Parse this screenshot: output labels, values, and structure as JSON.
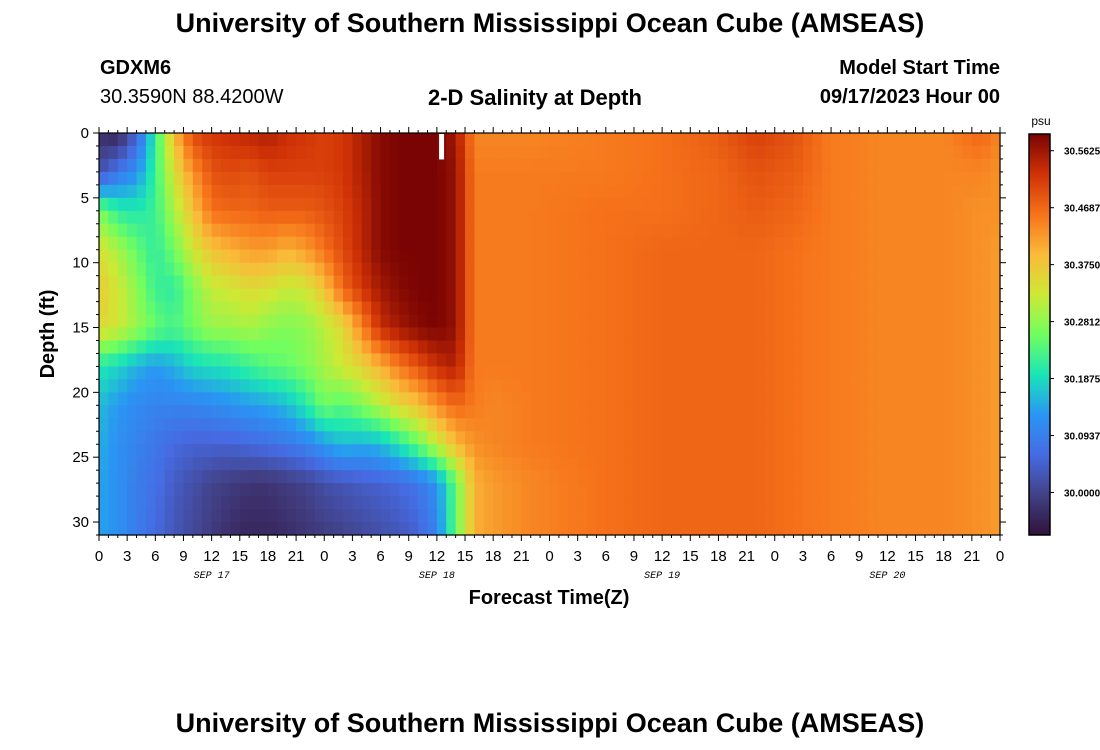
{
  "header": {
    "title_top": "University of Southern Mississippi Ocean Cube (AMSEAS)",
    "station_id": "GDXM6",
    "coordinates": "30.3590N  88.4200W",
    "plot_title": "2-D Salinity at Depth",
    "model_start_label": "Model Start Time",
    "model_start_value": "09/17/2023 Hour 00",
    "title_bottom": "University of Southern Mississippi Ocean Cube (AMSEAS)"
  },
  "chart_data": {
    "type": "heatmap",
    "title": "2-D Salinity at Depth",
    "xlabel": "Forecast Time(Z)",
    "ylabel": "Depth (ft)",
    "x_range_hours": [
      0,
      96
    ],
    "x_ticks": [
      "0",
      "3",
      "6",
      "9",
      "12",
      "15",
      "18",
      "21",
      "0",
      "3",
      "6",
      "9",
      "12",
      "15",
      "18",
      "21",
      "0",
      "3",
      "6",
      "9",
      "12",
      "15",
      "18",
      "21",
      "0",
      "3",
      "6",
      "9",
      "12",
      "15",
      "18",
      "21",
      "0"
    ],
    "date_labels": [
      {
        "text": "SEP 17",
        "hour": 12
      },
      {
        "text": "SEP 18",
        "hour": 36
      },
      {
        "text": "SEP 19",
        "hour": 60
      },
      {
        "text": "SEP 20",
        "hour": 84
      }
    ],
    "y_range": [
      0,
      31
    ],
    "y_ticks": [
      0,
      5,
      10,
      15,
      20,
      25,
      30
    ],
    "colorbar": {
      "units": "psu",
      "range": [
        29.93,
        30.59
      ],
      "tick_values": [
        30.5625,
        30.4687,
        30.375,
        30.2812,
        30.1875,
        30.0937,
        30.0
      ],
      "tick_labels": [
        "30.5625",
        "30.4687",
        "30.3750",
        "30.2812",
        "30.1875",
        "30.0937",
        "30.0000"
      ]
    },
    "marker": {
      "hour": 36.5,
      "depth_from": 0,
      "depth_to": 1.5
    },
    "salinity_grid": {
      "times": [
        0,
        2,
        4,
        6,
        8,
        10,
        12,
        14,
        16,
        18,
        20,
        22,
        24,
        26,
        28,
        30,
        32,
        34,
        36,
        38,
        40,
        42,
        46,
        54,
        60,
        66,
        70,
        74,
        78,
        84,
        90,
        94,
        96
      ],
      "depths": [
        0,
        3,
        6,
        9,
        12,
        15,
        18,
        21,
        24,
        27,
        31
      ],
      "values": [
        [
          29.97,
          29.95,
          30.05,
          30.21,
          30.39,
          30.5,
          30.52,
          30.53,
          30.54,
          30.55,
          30.53,
          30.52,
          30.51,
          30.52,
          30.55,
          30.58,
          30.59,
          30.59,
          30.59,
          30.56,
          30.44,
          30.44,
          30.44,
          30.45,
          30.46,
          30.48,
          30.51,
          30.49,
          30.45,
          30.44,
          30.44,
          30.47,
          30.44
        ],
        [
          30.02,
          30.08,
          30.12,
          30.22,
          30.34,
          30.43,
          30.49,
          30.5,
          30.49,
          30.51,
          30.51,
          30.51,
          30.51,
          30.52,
          30.55,
          30.58,
          30.59,
          30.59,
          30.59,
          30.57,
          30.45,
          30.45,
          30.45,
          30.45,
          30.46,
          30.47,
          30.49,
          30.48,
          30.45,
          30.44,
          30.44,
          30.44,
          30.43
        ],
        [
          30.27,
          30.21,
          30.2,
          30.22,
          30.3,
          30.38,
          30.46,
          30.47,
          30.47,
          30.48,
          30.48,
          30.48,
          30.49,
          30.51,
          30.54,
          30.58,
          30.59,
          30.59,
          30.59,
          30.57,
          30.45,
          30.45,
          30.45,
          30.46,
          30.46,
          30.47,
          30.48,
          30.47,
          30.45,
          30.44,
          30.44,
          30.43,
          30.43
        ],
        [
          30.34,
          30.3,
          30.25,
          30.21,
          30.26,
          30.33,
          30.38,
          30.4,
          30.42,
          30.42,
          30.4,
          30.42,
          30.46,
          30.5,
          30.54,
          30.58,
          30.59,
          30.59,
          30.59,
          30.57,
          30.45,
          30.45,
          30.45,
          30.46,
          30.47,
          30.47,
          30.47,
          30.46,
          30.45,
          30.44,
          30.44,
          30.43,
          30.42
        ],
        [
          30.37,
          30.33,
          30.28,
          30.22,
          30.21,
          30.27,
          30.32,
          30.33,
          30.35,
          30.34,
          30.32,
          30.33,
          30.38,
          30.47,
          30.52,
          30.56,
          30.58,
          30.59,
          30.59,
          30.57,
          30.45,
          30.45,
          30.45,
          30.46,
          30.47,
          30.47,
          30.47,
          30.46,
          30.45,
          30.44,
          30.44,
          30.43,
          30.42
        ],
        [
          30.35,
          30.33,
          30.29,
          30.25,
          30.23,
          30.26,
          30.29,
          30.29,
          30.3,
          30.28,
          30.27,
          30.28,
          30.31,
          30.35,
          30.44,
          30.53,
          30.56,
          30.58,
          30.59,
          30.57,
          30.45,
          30.45,
          30.45,
          30.46,
          30.47,
          30.47,
          30.47,
          30.46,
          30.45,
          30.44,
          30.44,
          30.43,
          30.42
        ],
        [
          30.2,
          30.18,
          30.15,
          30.13,
          30.15,
          30.18,
          30.19,
          30.2,
          30.22,
          30.24,
          30.25,
          30.27,
          30.3,
          30.33,
          30.36,
          30.4,
          30.45,
          30.49,
          30.53,
          30.55,
          30.45,
          30.45,
          30.45,
          30.46,
          30.47,
          30.47,
          30.47,
          30.46,
          30.45,
          30.44,
          30.44,
          30.43,
          30.42
        ],
        [
          30.16,
          30.13,
          30.11,
          30.1,
          30.1,
          30.1,
          30.11,
          30.12,
          30.13,
          30.14,
          30.16,
          30.2,
          30.26,
          30.24,
          30.27,
          30.31,
          30.35,
          30.38,
          30.43,
          30.47,
          30.45,
          30.44,
          30.45,
          30.46,
          30.47,
          30.47,
          30.47,
          30.46,
          30.45,
          30.44,
          30.44,
          30.43,
          30.42
        ],
        [
          30.15,
          30.12,
          30.1,
          30.08,
          30.06,
          30.05,
          30.05,
          30.05,
          30.06,
          30.07,
          30.08,
          30.1,
          30.13,
          30.16,
          30.15,
          30.16,
          30.2,
          30.25,
          30.32,
          30.39,
          30.43,
          30.44,
          30.45,
          30.46,
          30.47,
          30.47,
          30.47,
          30.46,
          30.45,
          30.44,
          30.44,
          30.43,
          30.42
        ],
        [
          30.14,
          30.12,
          30.09,
          30.07,
          30.04,
          30.02,
          30.0,
          29.99,
          29.98,
          29.98,
          29.99,
          30.0,
          30.02,
          30.03,
          30.04,
          30.05,
          30.06,
          30.08,
          30.12,
          30.25,
          30.4,
          30.42,
          30.44,
          30.46,
          30.47,
          30.47,
          30.47,
          30.46,
          30.45,
          30.44,
          30.44,
          30.43,
          30.42
        ],
        [
          30.14,
          30.12,
          30.09,
          30.06,
          30.03,
          30.01,
          29.99,
          29.97,
          29.96,
          29.96,
          29.97,
          29.98,
          29.99,
          30.0,
          30.01,
          30.02,
          30.03,
          30.05,
          30.1,
          30.25,
          30.4,
          30.42,
          30.44,
          30.46,
          30.47,
          30.47,
          30.47,
          30.46,
          30.45,
          30.44,
          30.44,
          30.43,
          30.42
        ]
      ]
    }
  }
}
